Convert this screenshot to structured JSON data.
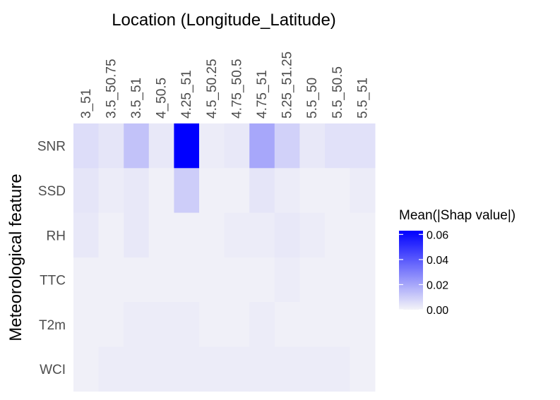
{
  "chart_data": {
    "type": "heatmap",
    "title": "Location (Longitude_Latitude)",
    "xlabel": "Location (Longitude_Latitude)",
    "ylabel": "Meteorological feature",
    "x_categories": [
      "3_51",
      "3.5_50.75",
      "3.5_51",
      "4_50.5",
      "4.25_51",
      "4.5_50.25",
      "4.75_50.5",
      "4.75_51",
      "5.25_51.25",
      "5.5_50",
      "5.5_50.5",
      "5.5_51"
    ],
    "y_categories": [
      "SNR",
      "SSD",
      "RH",
      "TTC",
      "T2m",
      "WCI"
    ],
    "values": [
      [
        0.006,
        0.004,
        0.013,
        0.003,
        0.063,
        0.002,
        0.003,
        0.02,
        0.009,
        0.003,
        0.005,
        0.005
      ],
      [
        0.004,
        0.002,
        0.003,
        0.001,
        0.01,
        0.001,
        0.001,
        0.004,
        0.002,
        0.001,
        0.001,
        0.002
      ],
      [
        0.003,
        0.001,
        0.003,
        0.001,
        0.001,
        0.001,
        0.002,
        0.002,
        0.003,
        0.002,
        0.001,
        0.001
      ],
      [
        0.001,
        0.001,
        0.001,
        0.001,
        0.001,
        0.001,
        0.001,
        0.001,
        0.002,
        0.001,
        0.001,
        0.001
      ],
      [
        0.001,
        0.001,
        0.002,
        0.002,
        0.002,
        0.001,
        0.001,
        0.002,
        0.001,
        0.001,
        0.001,
        0.001
      ],
      [
        0.001,
        0.002,
        0.002,
        0.002,
        0.002,
        0.002,
        0.002,
        0.002,
        0.002,
        0.002,
        0.002,
        0.001
      ]
    ],
    "legend": {
      "title": "Mean(|Shap value|)",
      "ticks": [
        0.0,
        0.02,
        0.04,
        0.06
      ],
      "tick_labels": [
        "0.00",
        "0.02",
        "0.04",
        "0.06"
      ],
      "range": [
        0,
        0.063
      ],
      "low_color": "#f4f4f8",
      "high_color": "#0000ff",
      "placement": "right"
    },
    "grid": false,
    "background": "#ffffff"
  }
}
